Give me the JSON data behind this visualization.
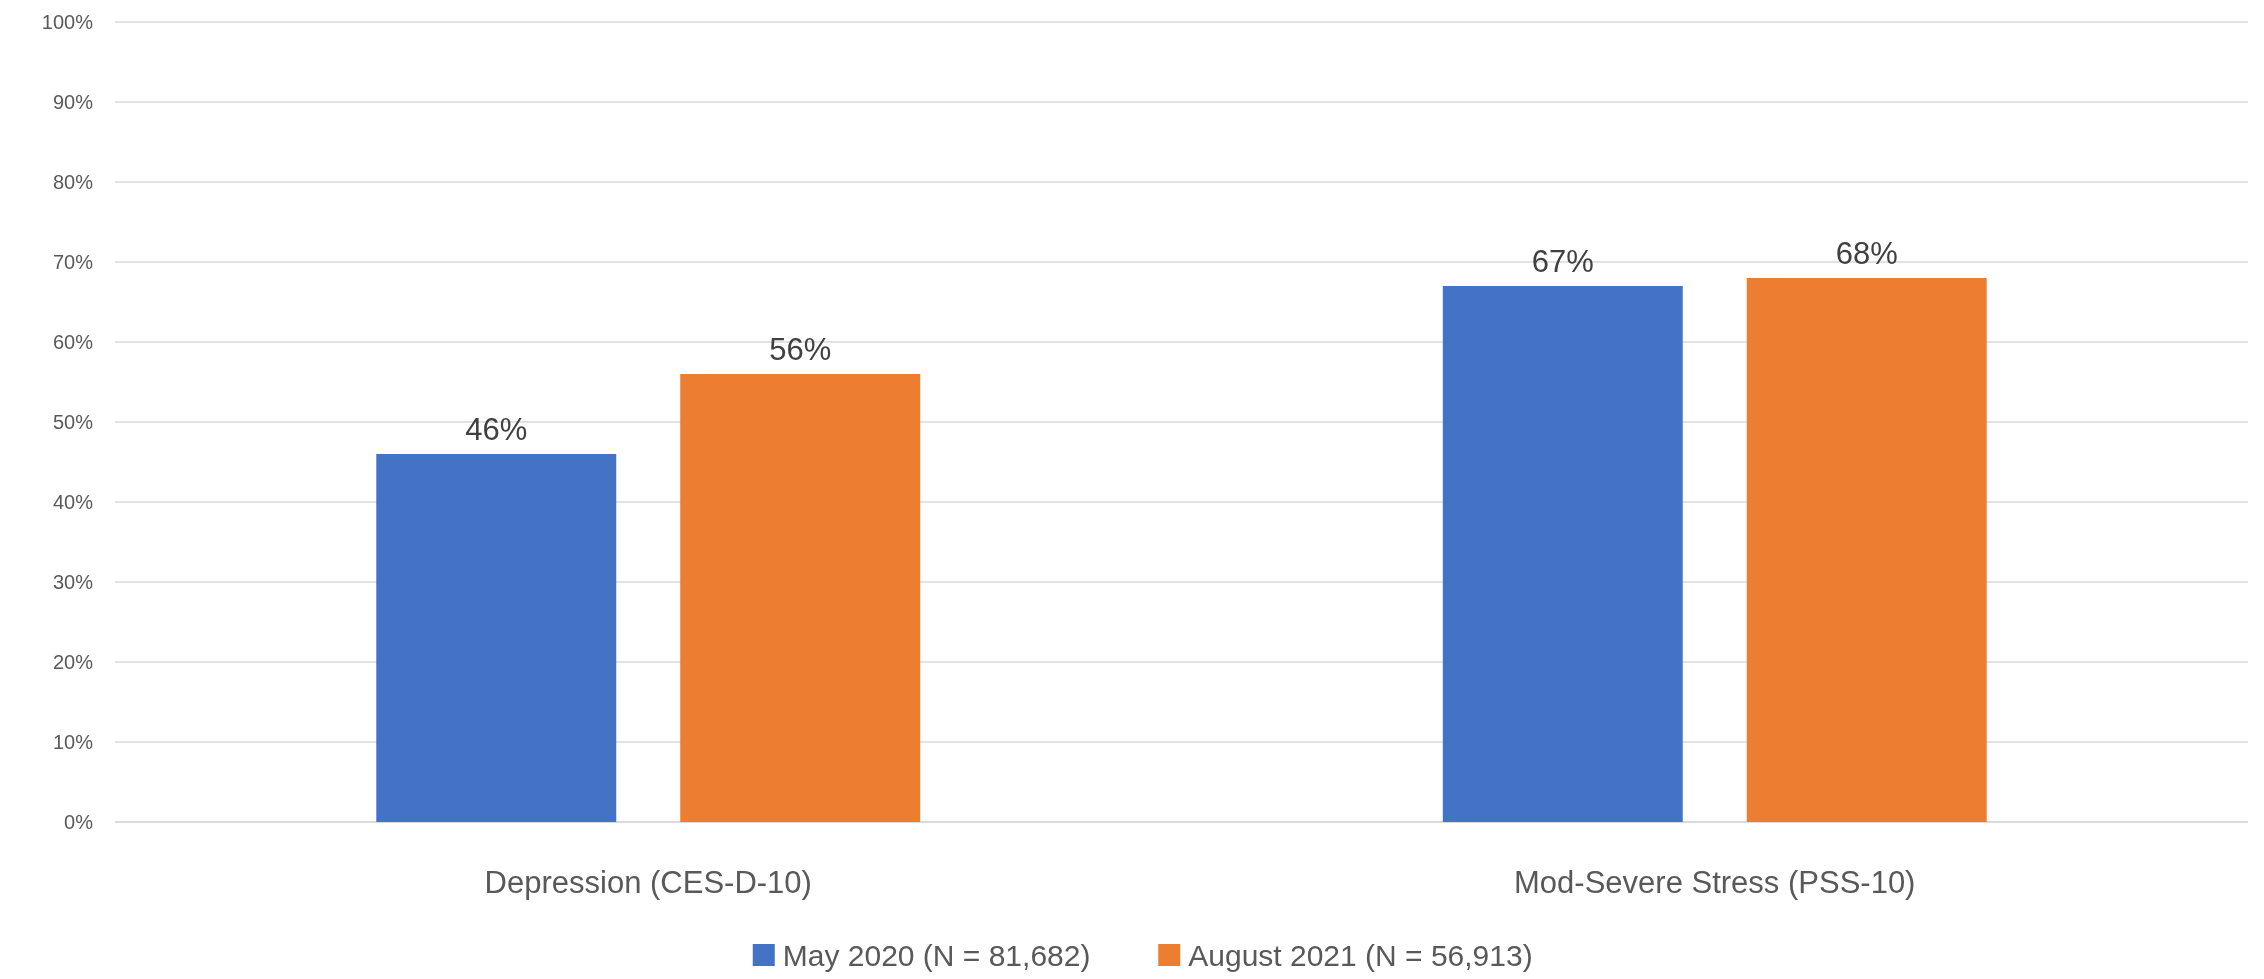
{
  "chart_data": {
    "type": "bar",
    "categories": [
      "Depression (CES-D-10)",
      "Mod-Severe Stress (PSS-10)"
    ],
    "series": [
      {
        "name": "May 2020 (N = 81,682)",
        "color": "#4472c4",
        "values": [
          46,
          67
        ],
        "value_labels": [
          "46%",
          "67%"
        ]
      },
      {
        "name": "August 2021 (N = 56,913)",
        "color": "#ed7d31",
        "values": [
          56,
          68
        ],
        "value_labels": [
          "56%",
          "68%"
        ]
      }
    ],
    "ylim": [
      0,
      100
    ],
    "yticks": [
      {
        "value": 0,
        "label": "0%"
      },
      {
        "value": 10,
        "label": "10%"
      },
      {
        "value": 20,
        "label": "20%"
      },
      {
        "value": 30,
        "label": "30%"
      },
      {
        "value": 40,
        "label": "40%"
      },
      {
        "value": 50,
        "label": "50%"
      },
      {
        "value": 60,
        "label": "60%"
      },
      {
        "value": 70,
        "label": "70%"
      },
      {
        "value": 80,
        "label": "80%"
      },
      {
        "value": 90,
        "label": "90%"
      },
      {
        "value": 100,
        "label": "100%"
      }
    ],
    "grid": "y",
    "legend": "bottom"
  }
}
